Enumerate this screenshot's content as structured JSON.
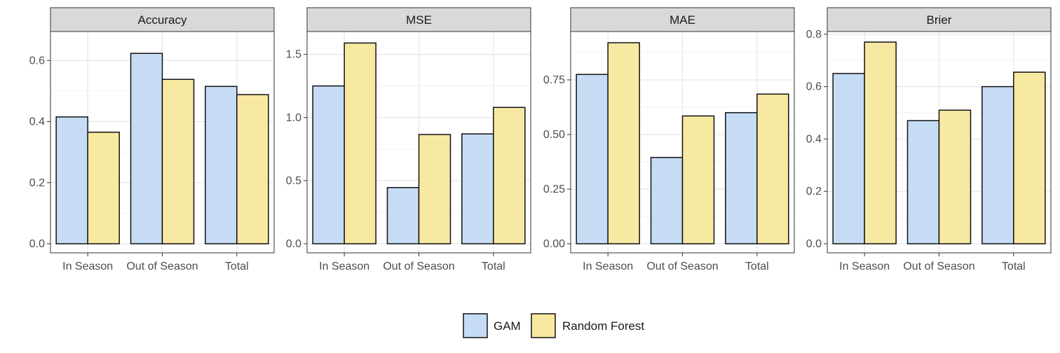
{
  "chart_data": {
    "type": "bar",
    "layout": "facets",
    "categories": [
      "In Season",
      "Out of Season",
      "Total"
    ],
    "series_names": [
      "GAM",
      "Random Forest"
    ],
    "colors": {
      "GAM": "#c6dcf5",
      "Random Forest": "#f8e9a2"
    },
    "legend": {
      "position": "bottom",
      "entries": [
        "GAM",
        "Random Forest"
      ]
    },
    "panels": [
      {
        "title": "Accuracy",
        "ylim": [
          0,
          0.69
        ],
        "yticks": [
          0.0,
          0.2,
          0.4,
          0.6
        ],
        "ytick_labels": [
          "0.0",
          "0.2",
          "0.4",
          "0.6"
        ],
        "series": [
          {
            "name": "GAM",
            "values": [
              0.415,
              0.623,
              0.515
            ]
          },
          {
            "name": "Random Forest",
            "values": [
              0.365,
              0.538,
              0.488
            ]
          }
        ]
      },
      {
        "title": "MSE",
        "ylim": [
          0,
          1.67
        ],
        "yticks": [
          0.0,
          0.5,
          1.0,
          1.5
        ],
        "ytick_labels": [
          "0.0",
          "0.5",
          "1.0",
          "1.5"
        ],
        "series": [
          {
            "name": "GAM",
            "values": [
              1.25,
              0.445,
              0.87
            ]
          },
          {
            "name": "Random Forest",
            "values": [
              1.59,
              0.865,
              1.08
            ]
          }
        ]
      },
      {
        "title": "MAE",
        "ylim": [
          0,
          0.965
        ],
        "yticks": [
          0.0,
          0.25,
          0.5,
          0.75
        ],
        "ytick_labels": [
          "0.00",
          "0.25",
          "0.50",
          "0.75"
        ],
        "series": [
          {
            "name": "GAM",
            "values": [
              0.775,
              0.395,
              0.6
            ]
          },
          {
            "name": "Random Forest",
            "values": [
              0.92,
              0.585,
              0.685
            ]
          }
        ]
      },
      {
        "title": "Brier",
        "ylim": [
          0,
          0.805
        ],
        "yticks": [
          0.0,
          0.2,
          0.4,
          0.6,
          0.8
        ],
        "ytick_labels": [
          "0.0",
          "0.2",
          "0.4",
          "0.6",
          "0.8"
        ],
        "series": [
          {
            "name": "GAM",
            "values": [
              0.65,
              0.47,
              0.6
            ]
          },
          {
            "name": "Random Forest",
            "values": [
              0.77,
              0.51,
              0.655
            ]
          }
        ]
      }
    ]
  }
}
